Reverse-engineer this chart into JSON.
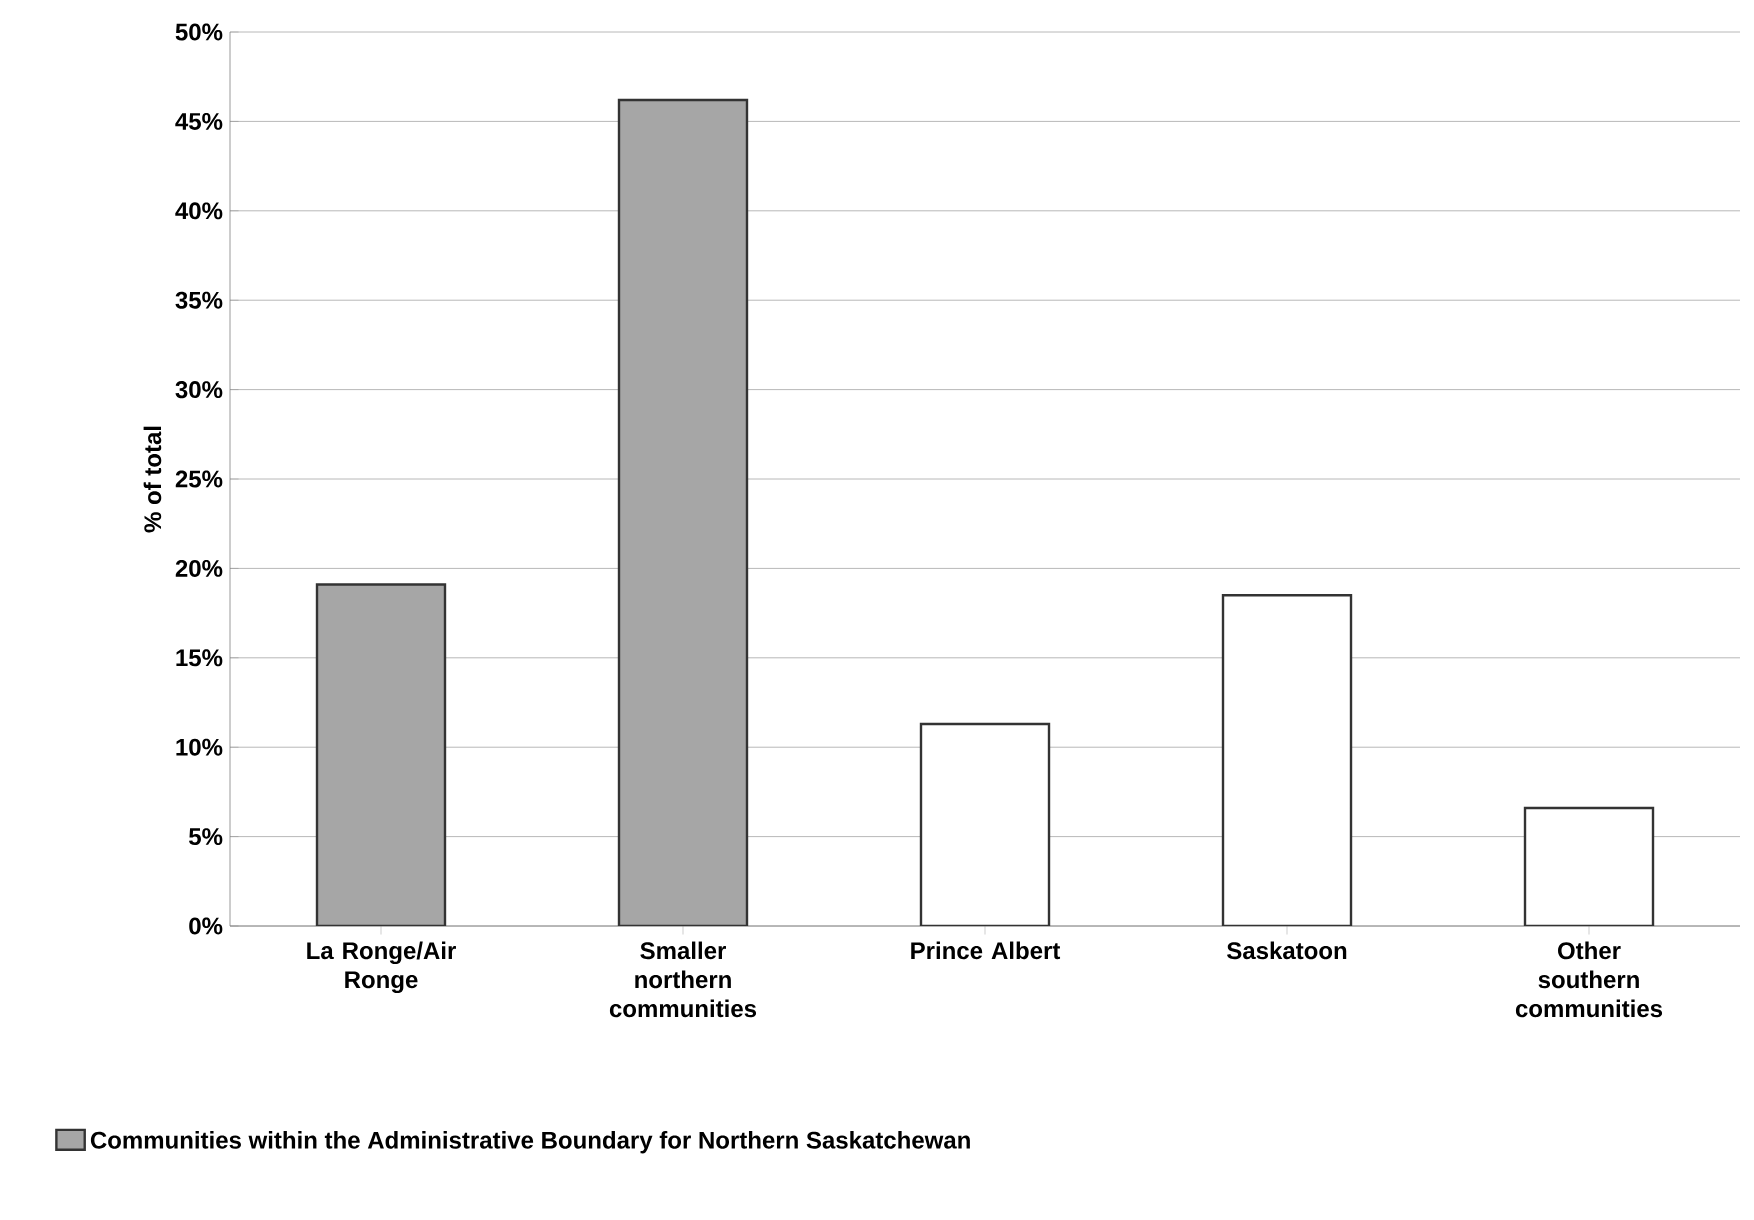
{
  "chart_data": {
    "type": "bar",
    "ylabel": "% of total",
    "categories": [
      "La Ronge/Air Ronge",
      "Smaller northern communities",
      "Prince Albert",
      "Saskatoon",
      "Other southern communities"
    ],
    "series": [
      {
        "name": "Communities within the Administrative Boundary for Northern Saskatchewan",
        "color": "#a6a6a6",
        "values": [
          19.1,
          46.2,
          null,
          null,
          null
        ]
      },
      {
        "color": "#ffffff",
        "values": [
          null,
          null,
          11.3,
          18.5,
          6.6
        ]
      }
    ],
    "ylim": [
      0,
      50
    ],
    "yticks": [
      {
        "value": 0,
        "label": "0%"
      },
      {
        "value": 5,
        "label": "5%"
      },
      {
        "value": 10,
        "label": "10%"
      },
      {
        "value": 15,
        "label": "15%"
      },
      {
        "value": 20,
        "label": "20%"
      },
      {
        "value": 25,
        "label": "25%"
      },
      {
        "value": 30,
        "label": "30%"
      },
      {
        "value": 35,
        "label": "35%"
      },
      {
        "value": 40,
        "label": "40%"
      },
      {
        "value": 45,
        "label": "45%"
      },
      {
        "value": 50,
        "label": "50%"
      }
    ],
    "grid": "y",
    "legend": "bottom left"
  }
}
